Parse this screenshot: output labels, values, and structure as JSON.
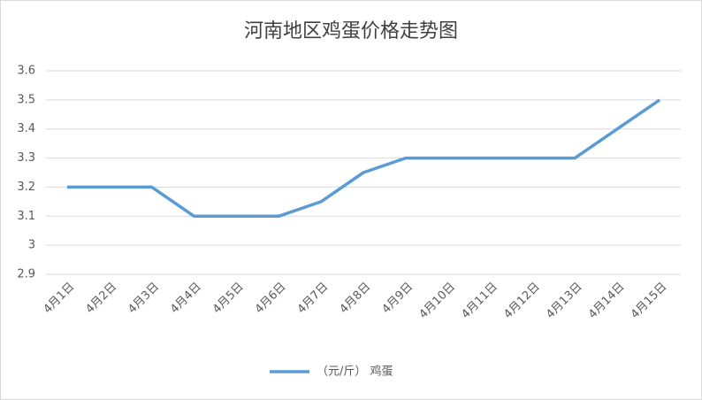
{
  "chart_data": {
    "type": "line",
    "title": "河南地区鸡蛋价格走势图",
    "categories": [
      "4月1日",
      "4月2日",
      "4月3日",
      "4月4日",
      "4月5日",
      "4月6日",
      "4月7日",
      "4月8日",
      "4月9日",
      "4月10日",
      "4月11日",
      "4月12日",
      "4月13日",
      "4月14日",
      "4月15日"
    ],
    "series": [
      {
        "name": "（元/斤） 鸡蛋",
        "color": "#5b9bd5",
        "values": [
          3.2,
          3.2,
          3.2,
          3.1,
          3.1,
          3.1,
          3.15,
          3.25,
          3.3,
          3.3,
          3.3,
          3.3,
          3.3,
          3.4,
          3.5
        ]
      }
    ],
    "ylim": [
      2.9,
      3.6
    ],
    "yticks": [
      2.9,
      3,
      3.1,
      3.2,
      3.3,
      3.4,
      3.5,
      3.6
    ],
    "grid": true,
    "legend": "bottom"
  }
}
